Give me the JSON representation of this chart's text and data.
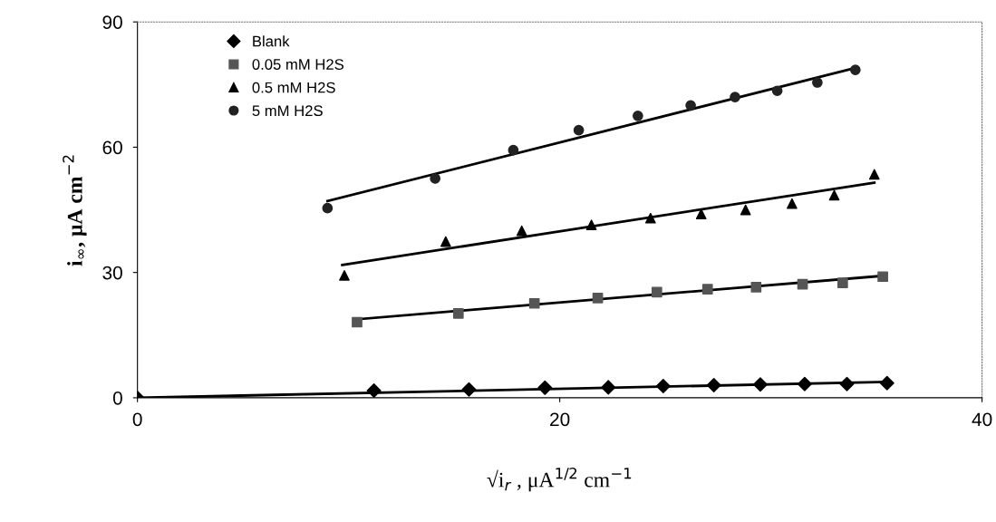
{
  "chart_data": {
    "type": "scatter",
    "xlabel": "√i$_{r}$ , μA$^{1/2}$ cm$^{−1}$",
    "ylabel": "i$_{∞}$, μA cm$^{−2}$",
    "xlim": [
      0,
      40
    ],
    "ylim": [
      0,
      90
    ],
    "xticks": [
      0,
      20,
      40
    ],
    "yticks": [
      0,
      30,
      60,
      90
    ],
    "grid": false,
    "legend": "top left",
    "series": [
      {
        "name": "Blank",
        "color": "#000000",
        "marker": "diamond",
        "x": [
          0,
          11.2,
          15.7,
          19.3,
          22.3,
          24.9,
          27.3,
          29.5,
          31.6,
          33.6,
          35.5
        ],
        "values": [
          0,
          1.7,
          2.0,
          2.4,
          2.5,
          2.8,
          3.0,
          3.2,
          3.3,
          3.3,
          3.5
        ]
      },
      {
        "name": "0.05 mM H2S",
        "color": "#555555",
        "marker": "square",
        "x": [
          10.4,
          15.2,
          18.8,
          21.8,
          24.6,
          27.0,
          29.3,
          31.5,
          33.4,
          35.3
        ],
        "values": [
          18.1,
          20.2,
          22.6,
          23.9,
          25.3,
          26,
          26.5,
          27.2,
          27.5,
          29
        ]
      },
      {
        "name": "0.5 mM H2S",
        "color": "#000000",
        "marker": "triangle",
        "x": [
          9.8,
          14.6,
          18.2,
          21.5,
          24.3,
          26.7,
          28.8,
          31.0,
          33.0,
          34.9
        ],
        "values": [
          29.3,
          37.4,
          40,
          41.4,
          43,
          44,
          45,
          46.5,
          48.5,
          53.5
        ]
      },
      {
        "name": "5 mM H2S",
        "color": "#222222",
        "marker": "circle",
        "x": [
          9.0,
          14.1,
          17.8,
          20.9,
          23.7,
          26.2,
          28.3,
          30.3,
          32.2,
          34.0
        ],
        "values": [
          45.4,
          52.5,
          59.3,
          64.1,
          67.5,
          70,
          72,
          73.5,
          75.5,
          78.5
        ]
      },
      {
        "type": "line",
        "color": "#000000",
        "x": [
          0,
          35.5
        ],
        "values": [
          0,
          3.8
        ]
      },
      {
        "type": "line",
        "color": "#000000",
        "x": [
          10.4,
          35.3
        ],
        "values": [
          18.8,
          29.2
        ]
      },
      {
        "type": "line",
        "color": "#000000",
        "x": [
          9.7,
          34.9
        ],
        "values": [
          31.8,
          51.5
        ]
      },
      {
        "type": "line",
        "color": "#000000",
        "x": [
          9.0,
          34.0
        ],
        "values": [
          47.1,
          79
        ]
      }
    ]
  }
}
